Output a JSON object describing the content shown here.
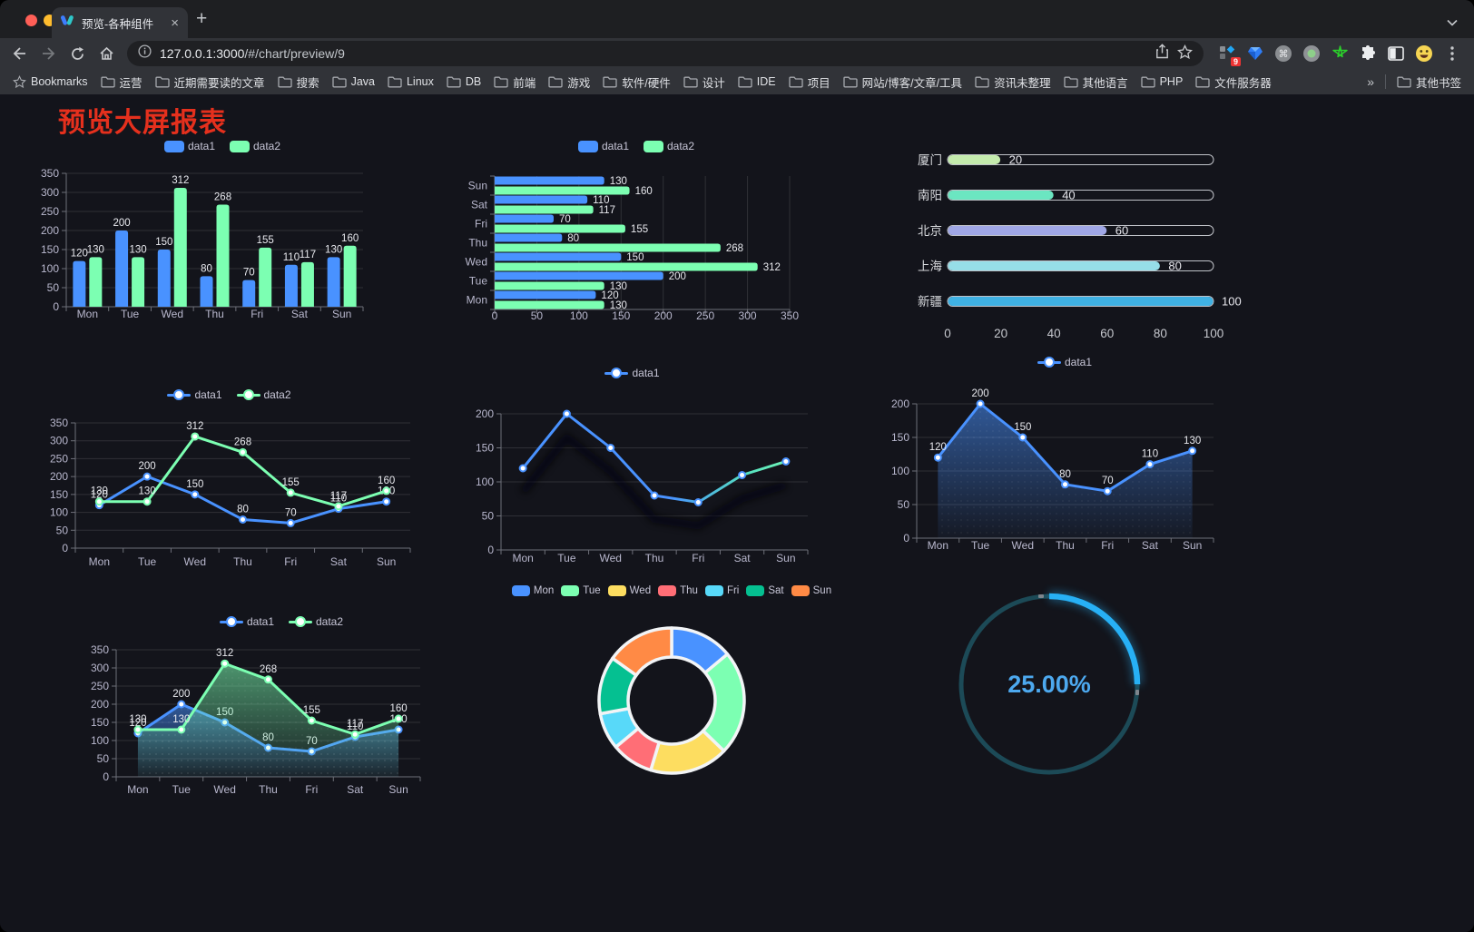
{
  "browser": {
    "tab": {
      "title": "预览-各种组件",
      "close_glyph": "×",
      "new_tab_glyph": "+"
    },
    "url": {
      "host": "127.0.0.1:3000",
      "path": "/#/chart/preview/9"
    },
    "extensions": {
      "badge_count": "9"
    }
  },
  "bookmarks": {
    "label": "Bookmarks",
    "folders": [
      "运营",
      "近期需要读的文章",
      "搜索",
      "Java",
      "Linux",
      "DB",
      "前端",
      "游戏",
      "软件/硬件",
      "设计",
      "IDE",
      "项目",
      "网站/博客/文章/工具",
      "资讯未整理",
      "其他语言",
      "PHP",
      "文件服务器"
    ],
    "overflow_glyph": "»",
    "other_label": "其他书签"
  },
  "page": {
    "title": "预览大屏报表",
    "title_color": "#e5301d"
  },
  "chart_data": [
    {
      "id": "bar-grouped",
      "type": "bar",
      "categories": [
        "Mon",
        "Tue",
        "Wed",
        "Thu",
        "Fri",
        "Sat",
        "Sun"
      ],
      "series": [
        {
          "name": "data1",
          "color": "#4992ff",
          "values": [
            120,
            200,
            150,
            80,
            70,
            110,
            130
          ]
        },
        {
          "name": "data2",
          "color": "#7cffb2",
          "values": [
            130,
            130,
            312,
            268,
            155,
            117,
            160
          ]
        }
      ],
      "ylim": [
        0,
        350
      ],
      "ystep": 50,
      "legend_position": "top",
      "grid": true
    },
    {
      "id": "bar-horizontal",
      "type": "bar-horizontal",
      "categories": [
        "Mon",
        "Tue",
        "Wed",
        "Thu",
        "Fri",
        "Sat",
        "Sun"
      ],
      "categories_axis_top_to_bottom": [
        "Sun",
        "Sat",
        "Fri",
        "Thu",
        "Wed",
        "Tue",
        "Mon"
      ],
      "series": [
        {
          "name": "data1",
          "color": "#4992ff",
          "values": [
            120,
            200,
            150,
            80,
            70,
            110,
            130
          ]
        },
        {
          "name": "data2",
          "color": "#7cffb2",
          "values": [
            130,
            130,
            312,
            268,
            155,
            117,
            160
          ]
        }
      ],
      "xlim": [
        0,
        350
      ],
      "xstep": 50,
      "legend_position": "top",
      "grid": true
    },
    {
      "id": "progress",
      "type": "progress-bars",
      "max": 100,
      "ticks": [
        0,
        20,
        40,
        60,
        80,
        100
      ],
      "items": [
        {
          "label": "厦门",
          "value": 20,
          "color": "#c4ebad"
        },
        {
          "label": "南阳",
          "value": 40,
          "color": "#6be6c1"
        },
        {
          "label": "北京",
          "value": 60,
          "color": "#a0a7e6"
        },
        {
          "label": "上海",
          "value": 80,
          "color": "#96dee8"
        },
        {
          "label": "新疆",
          "value": 100,
          "color": "#3fb1e3"
        }
      ]
    },
    {
      "id": "line-two",
      "type": "line",
      "categories": [
        "Mon",
        "Tue",
        "Wed",
        "Thu",
        "Fri",
        "Sat",
        "Sun"
      ],
      "series": [
        {
          "name": "data1",
          "color": "#4992ff",
          "values": [
            120,
            200,
            150,
            80,
            70,
            110,
            130
          ]
        },
        {
          "name": "data2",
          "color": "#7cffb2",
          "values": [
            130,
            130,
            312,
            268,
            155,
            117,
            160
          ]
        }
      ],
      "ylim": [
        0,
        350
      ],
      "ystep": 50,
      "labels": true,
      "legend_position": "top"
    },
    {
      "id": "line-gradient",
      "type": "line",
      "categories": [
        "Mon",
        "Tue",
        "Wed",
        "Thu",
        "Fri",
        "Sat",
        "Sun"
      ],
      "series": [
        {
          "name": "data1",
          "color": "#4992ff",
          "gradient": [
            "#4992ff",
            "#4992ff",
            "#55e0c0",
            "#7cffb2"
          ],
          "values": [
            120,
            200,
            150,
            80,
            70,
            110,
            130
          ]
        }
      ],
      "ylim": [
        0,
        200
      ],
      "ystep": 50,
      "labels": false,
      "shadow": true,
      "legend_position": "top"
    },
    {
      "id": "line-area-one",
      "type": "line",
      "categories": [
        "Mon",
        "Tue",
        "Wed",
        "Thu",
        "Fri",
        "Sat",
        "Sun"
      ],
      "series": [
        {
          "name": "data1",
          "color": "#4992ff",
          "area": true,
          "values": [
            120,
            200,
            150,
            80,
            70,
            110,
            130
          ]
        }
      ],
      "ylim": [
        0,
        200
      ],
      "ystep": 50,
      "labels": true,
      "legend_position": "top"
    },
    {
      "id": "line-area-two",
      "type": "line",
      "categories": [
        "Mon",
        "Tue",
        "Wed",
        "Thu",
        "Fri",
        "Sat",
        "Sun"
      ],
      "series": [
        {
          "name": "data1",
          "color": "#4992ff",
          "area": true,
          "values": [
            120,
            200,
            150,
            80,
            70,
            110,
            130
          ]
        },
        {
          "name": "data2",
          "color": "#7cffb2",
          "area": true,
          "values": [
            130,
            130,
            312,
            268,
            155,
            117,
            160
          ]
        }
      ],
      "ylim": [
        0,
        350
      ],
      "ystep": 50,
      "labels": true,
      "legend_position": "top"
    },
    {
      "id": "doughnut",
      "type": "doughnut",
      "legend_position": "top",
      "items": [
        {
          "label": "Mon",
          "value": 120,
          "color": "#4992ff"
        },
        {
          "label": "Tue",
          "value": 200,
          "color": "#7cffb2"
        },
        {
          "label": "Wed",
          "value": 150,
          "color": "#fddd60"
        },
        {
          "label": "Thu",
          "value": 80,
          "color": "#ff6e76"
        },
        {
          "label": "Fri",
          "value": 70,
          "color": "#58d9f9"
        },
        {
          "label": "Sat",
          "value": 110,
          "color": "#05c091"
        },
        {
          "label": "Sun",
          "value": 130,
          "color": "#ff8a45"
        }
      ]
    },
    {
      "id": "gauge",
      "type": "gauge",
      "value": 25,
      "max": 100,
      "label": "25.00%",
      "color": "#27b0f5",
      "track_color": "#1c4a57",
      "text_color": "#4da9ef"
    }
  ]
}
